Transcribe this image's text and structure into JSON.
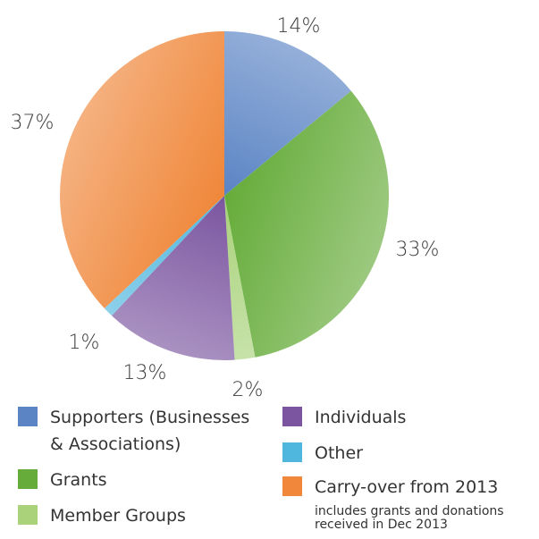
{
  "chart_data": {
    "type": "pie",
    "slices": [
      {
        "key": "supporters",
        "label": "Supporters (Businesses & Associations)",
        "value": 14,
        "pct_label": "14%",
        "color": "#5b84c4"
      },
      {
        "key": "grants",
        "label": "Grants",
        "value": 33,
        "pct_label": "33%",
        "color": "#66ac3a"
      },
      {
        "key": "member_groups",
        "label": "Member Groups",
        "value": 2,
        "pct_label": "2%",
        "color": "#a9d27a"
      },
      {
        "key": "individuals",
        "label": "Individuals",
        "value": 13,
        "pct_label": "13%",
        "color": "#7b55a0"
      },
      {
        "key": "other",
        "label": "Other",
        "value": 1,
        "pct_label": "1%",
        "color": "#4fb6de"
      },
      {
        "key": "carry_over",
        "label": "Carry-over from 2013",
        "value": 37,
        "pct_label": "37%",
        "color": "#f0873a"
      }
    ],
    "legend_placement": "bottom"
  },
  "legend": {
    "supporters_line1": "Supporters (Businesses",
    "supporters_line2": "& Associations)",
    "grants": "Grants",
    "member_groups": "Member Groups",
    "individuals": "Individuals",
    "other": "Other",
    "carry_over": "Carry-over from 2013",
    "carry_over_note_line1": "includes grants and donations",
    "carry_over_note_line2": "received in Dec 2013"
  }
}
